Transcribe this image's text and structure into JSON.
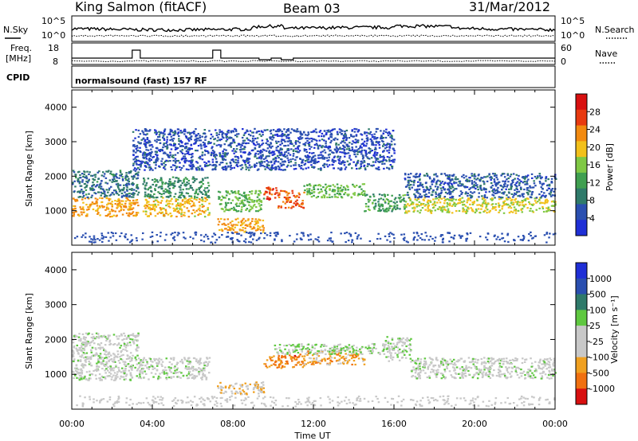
{
  "header": {
    "station": "King Salmon (fitACF)",
    "beam": "Beam 03",
    "date": "31/Mar/2012"
  },
  "noise_panel": {
    "left_label": "N.Sky",
    "right_label": "N.Search",
    "left_ticks": [
      "10^5",
      "10^0"
    ],
    "right_ticks": [
      "10^5",
      "10^0"
    ]
  },
  "freq_panel": {
    "left_label_1": "Freq.",
    "left_label_2": "[MHz]",
    "right_label": "Nave",
    "left_ticks": [
      "18",
      "8"
    ],
    "right_ticks": [
      "60",
      "0"
    ]
  },
  "cpid_panel": {
    "label": "CPID",
    "text": "normalsound (fast) 157 RF"
  },
  "power_panel": {
    "ylabel": "Slant Range [km]",
    "yticks": [
      "4000",
      "3000",
      "2000",
      "1000"
    ],
    "colorbar_label": "Power [dB]",
    "colorbar_ticks": [
      "28",
      "24",
      "20",
      "16",
      "12",
      "8",
      "4"
    ]
  },
  "velocity_panel": {
    "ylabel": "Slant Range [km]",
    "yticks": [
      "4000",
      "3000",
      "2000",
      "1000"
    ],
    "colorbar_label": "Velocity [m s⁻¹]",
    "colorbar_ticks": [
      "1000",
      "500",
      "100",
      "25",
      "-25",
      "-100",
      "-500",
      "-1000"
    ]
  },
  "xaxis": {
    "label": "Time UT",
    "ticks": [
      "00:00",
      "04:00",
      "08:00",
      "12:00",
      "16:00",
      "20:00",
      "00:00"
    ]
  },
  "colors": {
    "power_scale": [
      "#1f2fd6",
      "#2a4fb0",
      "#2f7a6a",
      "#3f9f50",
      "#7fc844",
      "#f2c01a",
      "#f28a10",
      "#e83a10",
      "#d81010"
    ],
    "velocity_scale": [
      "#1f2fd6",
      "#2a4fb0",
      "#2f7a6a",
      "#5fc840",
      "#c8c8c8",
      "#c8c8c8",
      "#f0a020",
      "#f07010",
      "#d81010"
    ]
  },
  "chart_data": [
    {
      "type": "heatmap",
      "title": "Power",
      "x_range_hours": [
        0,
        24
      ],
      "ylim": [
        0,
        4500
      ],
      "zlim": [
        0,
        32
      ],
      "bands": [
        {
          "t0": 0,
          "t1": 3.3,
          "r0": 850,
          "r1": 1400,
          "z": 22
        },
        {
          "t0": 0,
          "t1": 3.3,
          "r0": 1400,
          "r1": 2200,
          "z": 8
        },
        {
          "t0": 3.5,
          "t1": 6.8,
          "r0": 850,
          "r1": 1400,
          "z": 20
        },
        {
          "t0": 3.5,
          "t1": 6.8,
          "r0": 1400,
          "r1": 2000,
          "z": 10
        },
        {
          "t0": 7.2,
          "t1": 9.5,
          "r0": 1000,
          "r1": 1600,
          "z": 14
        },
        {
          "t0": 9.5,
          "t1": 10.2,
          "r0": 1300,
          "r1": 1700,
          "z": 27
        },
        {
          "t0": 10.2,
          "t1": 11.5,
          "r0": 1100,
          "r1": 1600,
          "z": 25
        },
        {
          "t0": 11.5,
          "t1": 14.5,
          "r0": 1400,
          "r1": 1800,
          "z": 14
        },
        {
          "t0": 14.5,
          "t1": 16.5,
          "r0": 1000,
          "r1": 1500,
          "z": 12
        },
        {
          "t0": 16.5,
          "t1": 24,
          "r0": 950,
          "r1": 1400,
          "z": 18
        },
        {
          "t0": 16.5,
          "t1": 24,
          "r0": 1400,
          "r1": 2100,
          "z": 6
        },
        {
          "t0": 7.2,
          "t1": 9.5,
          "r0": 400,
          "r1": 800,
          "z": 22
        },
        {
          "t0": 3.0,
          "t1": 16.0,
          "r0": 2200,
          "r1": 3400,
          "z": 5
        }
      ]
    },
    {
      "type": "heatmap",
      "title": "Velocity",
      "x_range_hours": [
        0,
        24
      ],
      "ylim": [
        0,
        4500
      ],
      "zlim": [
        -1000,
        1000
      ],
      "bands": [
        {
          "t0": 0,
          "t1": 6.8,
          "r0": 850,
          "r1": 1500,
          "z": 0
        },
        {
          "t0": 0,
          "t1": 3.3,
          "r0": 1500,
          "r1": 2200,
          "z": 0
        },
        {
          "t0": 7.2,
          "t1": 9.5,
          "r0": 450,
          "r1": 800,
          "z": -300
        },
        {
          "t0": 9.5,
          "t1": 11.5,
          "r0": 1200,
          "r1": 1600,
          "z": -600
        },
        {
          "t0": 11.5,
          "t1": 14.5,
          "r0": 1300,
          "r1": 1700,
          "z": -450
        },
        {
          "t0": 10.0,
          "t1": 15.5,
          "r0": 1600,
          "r1": 1900,
          "z": 150
        },
        {
          "t0": 15.5,
          "t1": 16.8,
          "r0": 1400,
          "r1": 2100,
          "z": 80
        },
        {
          "t0": 16.8,
          "t1": 24,
          "r0": 900,
          "r1": 1500,
          "z": 0
        }
      ]
    }
  ]
}
